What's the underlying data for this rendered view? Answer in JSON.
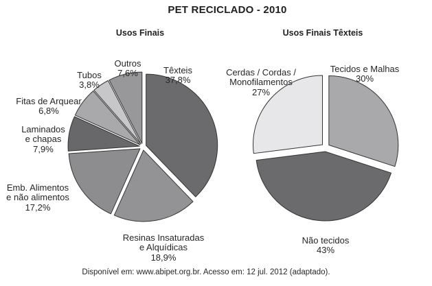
{
  "title": "PET RECICLADO - 2010",
  "source": "Disponível em: www.abipet.org.br. Acesso em: 12 jul. 2012 (adaptado).",
  "colors": {
    "background": "#ffffff",
    "slice_outline": "#333333",
    "text": "#262626"
  },
  "chart_data": [
    {
      "type": "pie",
      "title": "Usos Finais",
      "unit": "%",
      "start_angle_deg": 0,
      "direction": "clockwise",
      "legend": "none, labels around slices",
      "slices": [
        {
          "label": "Têxteis",
          "value": 37.8,
          "pct_label": "37,8%",
          "color": "#6b6b6e"
        },
        {
          "label": "Resinas Insaturadas\ne Alquídicas",
          "value": 18.9,
          "pct_label": "18,9%",
          "color": "#939396"
        },
        {
          "label": "Emb. Alimentos\ne não alimentos",
          "value": 17.2,
          "pct_label": "17,2%",
          "color": "#8d8d90"
        },
        {
          "label": "Laminados\ne chapas",
          "value": 7.9,
          "pct_label": "7,9%",
          "color": "#68686b"
        },
        {
          "label": "Fitas de Arquear",
          "value": 6.8,
          "pct_label": "6,8%",
          "color": "#a9a9ac"
        },
        {
          "label": "Tubos",
          "value": 3.8,
          "pct_label": "3,8%",
          "color": "#c7c7ca"
        },
        {
          "label": "Outros",
          "value": 7.6,
          "pct_label": "7,6%",
          "color": "#98989b"
        }
      ]
    },
    {
      "type": "pie",
      "title": "Usos Finais Têxteis",
      "unit": "%",
      "start_angle_deg": 0,
      "direction": "clockwise",
      "legend": "none, labels around slices",
      "slices": [
        {
          "label": "Tecidos e Malhas",
          "value": 30,
          "pct_label": "30%",
          "color": "#a9a9ac"
        },
        {
          "label": "Não tecidos",
          "value": 43,
          "pct_label": "43%",
          "color": "#6b6b6e"
        },
        {
          "label": "Cerdas / Cordas /\nMonofilamentos",
          "value": 27,
          "pct_label": "27%",
          "color": "#e7e7e9"
        }
      ]
    }
  ]
}
